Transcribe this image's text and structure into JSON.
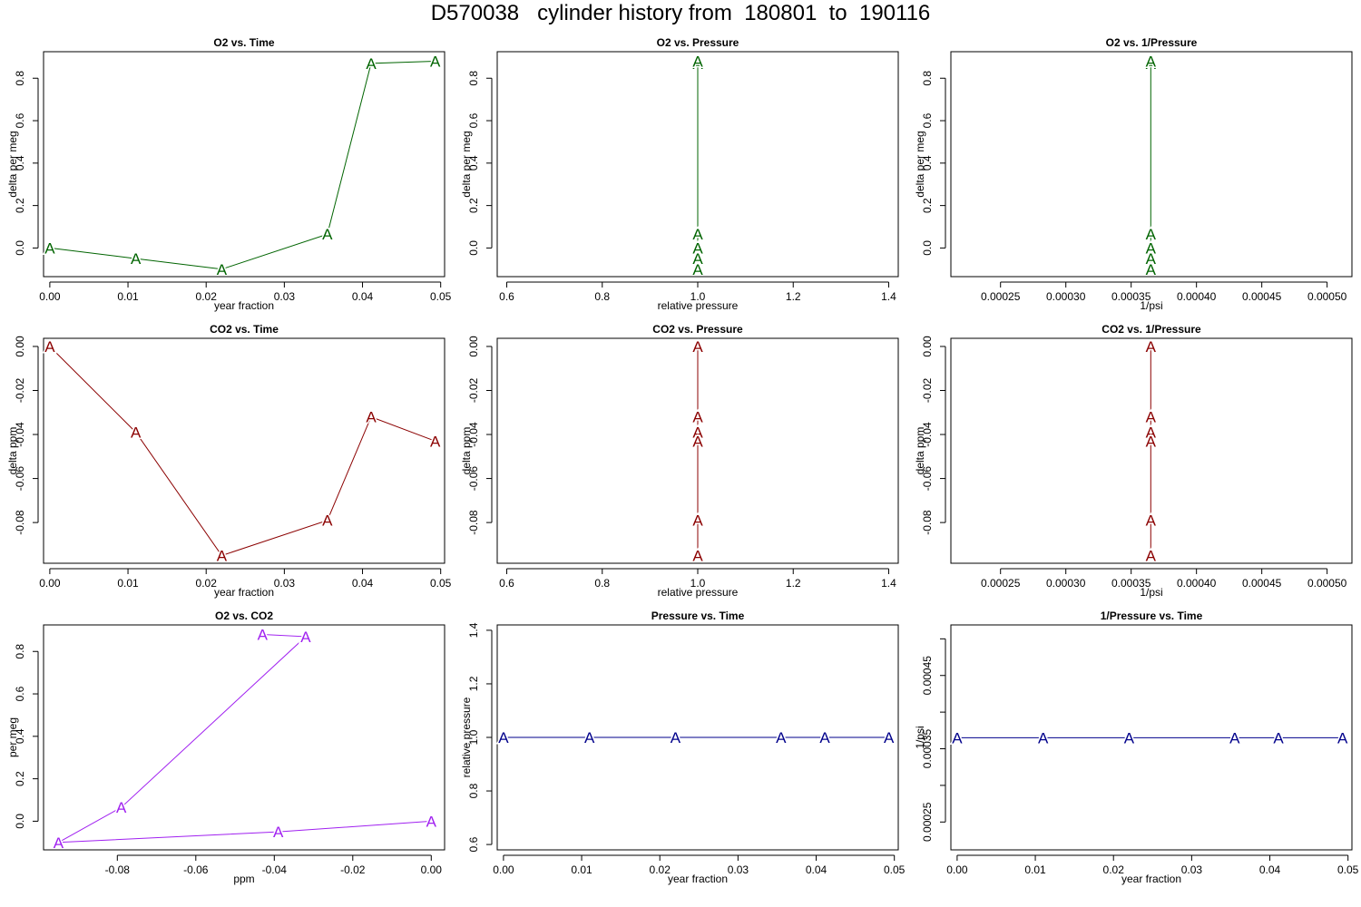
{
  "page": {
    "title": "D570038   cylinder history from  180801  to  190116"
  },
  "chart_data": [
    {
      "type": "line",
      "title": "O2 vs. Time",
      "xlabel": "year fraction",
      "ylabel": "delta per meg",
      "color": "#006400",
      "marker": "A",
      "xlim": [
        -0.0008,
        0.0505
      ],
      "ylim": [
        -0.135,
        0.925
      ],
      "xticks": [
        0.0,
        0.01,
        0.02,
        0.03,
        0.04,
        0.05
      ],
      "xtick_labels": [
        "0.00",
        "0.01",
        "0.02",
        "0.03",
        "0.04",
        "0.05"
      ],
      "yticks": [
        0.0,
        0.2,
        0.4,
        0.6,
        0.8
      ],
      "ytick_labels": [
        "0.0",
        "0.2",
        "0.4",
        "0.6",
        "0.8"
      ],
      "x": [
        0.0,
        0.011,
        0.022,
        0.0355,
        0.0411,
        0.0493
      ],
      "y": [
        0.0,
        -0.05,
        -0.1,
        0.065,
        0.87,
        0.88
      ]
    },
    {
      "type": "line",
      "title": "O2 vs. Pressure",
      "xlabel": "relative pressure",
      "ylabel": "delta per meg",
      "color": "#006400",
      "marker": "A",
      "xlim": [
        0.58,
        1.42
      ],
      "ylim": [
        -0.135,
        0.925
      ],
      "xticks": [
        0.6,
        0.8,
        1.0,
        1.2,
        1.4
      ],
      "xtick_labels": [
        "0.6",
        "0.8",
        "1.0",
        "1.2",
        "1.4"
      ],
      "yticks": [
        0.0,
        0.2,
        0.4,
        0.6,
        0.8
      ],
      "ytick_labels": [
        "0.0",
        "0.2",
        "0.4",
        "0.6",
        "0.8"
      ],
      "x": [
        1.0,
        1.0,
        1.0,
        1.0,
        1.0,
        1.0
      ],
      "y": [
        0.0,
        -0.05,
        -0.1,
        0.065,
        0.87,
        0.88
      ]
    },
    {
      "type": "line",
      "title": "O2 vs. 1/Pressure",
      "xlabel": "1/psi",
      "ylabel": "delta per meg",
      "color": "#006400",
      "marker": "A",
      "xlim": [
        0.000212,
        0.000519
      ],
      "ylim": [
        -0.135,
        0.925
      ],
      "xticks": [
        0.00025,
        0.0003,
        0.00035,
        0.0004,
        0.00045,
        0.0005
      ],
      "xtick_labels": [
        "0.00025",
        "0.00030",
        "0.00035",
        "0.00040",
        "0.00045",
        "0.00050"
      ],
      "yticks": [
        0.0,
        0.2,
        0.4,
        0.6,
        0.8
      ],
      "ytick_labels": [
        "0.0",
        "0.2",
        "0.4",
        "0.6",
        "0.8"
      ],
      "x": [
        0.000365,
        0.000365,
        0.000365,
        0.000365,
        0.000365,
        0.000365
      ],
      "y": [
        0.0,
        -0.05,
        -0.1,
        0.065,
        0.87,
        0.88
      ]
    },
    {
      "type": "line",
      "title": "CO2 vs. Time",
      "xlabel": "year fraction",
      "ylabel": "delta ppm",
      "color": "#8B0000",
      "marker": "A",
      "xlim": [
        -0.0008,
        0.0505
      ],
      "ylim": [
        -0.0985,
        0.0037
      ],
      "xticks": [
        0.0,
        0.01,
        0.02,
        0.03,
        0.04,
        0.05
      ],
      "xtick_labels": [
        "0.00",
        "0.01",
        "0.02",
        "0.03",
        "0.04",
        "0.05"
      ],
      "yticks": [
        -0.08,
        -0.06,
        -0.04,
        -0.02,
        0.0
      ],
      "ytick_labels": [
        "-0.08",
        "-0.06",
        "-0.04",
        "-0.02",
        "0.00"
      ],
      "x": [
        0.0,
        0.011,
        0.022,
        0.0355,
        0.0411,
        0.0493
      ],
      "y": [
        0.0,
        -0.039,
        -0.095,
        -0.079,
        -0.032,
        -0.043
      ]
    },
    {
      "type": "line",
      "title": "CO2 vs. Pressure",
      "xlabel": "relative pressure",
      "ylabel": "delta ppm",
      "color": "#8B0000",
      "marker": "A",
      "xlim": [
        0.58,
        1.42
      ],
      "ylim": [
        -0.0985,
        0.0037
      ],
      "xticks": [
        0.6,
        0.8,
        1.0,
        1.2,
        1.4
      ],
      "xtick_labels": [
        "0.6",
        "0.8",
        "1.0",
        "1.2",
        "1.4"
      ],
      "yticks": [
        -0.08,
        -0.06,
        -0.04,
        -0.02,
        0.0
      ],
      "ytick_labels": [
        "-0.08",
        "-0.06",
        "-0.04",
        "-0.02",
        "0.00"
      ],
      "x": [
        1.0,
        1.0,
        1.0,
        1.0,
        1.0,
        1.0
      ],
      "y": [
        0.0,
        -0.039,
        -0.095,
        -0.079,
        -0.032,
        -0.043
      ]
    },
    {
      "type": "line",
      "title": "CO2 vs. 1/Pressure",
      "xlabel": "1/psi",
      "ylabel": "delta ppm",
      "color": "#8B0000",
      "marker": "A",
      "xlim": [
        0.000212,
        0.000519
      ],
      "ylim": [
        -0.0985,
        0.0037
      ],
      "xticks": [
        0.00025,
        0.0003,
        0.00035,
        0.0004,
        0.00045,
        0.0005
      ],
      "xtick_labels": [
        "0.00025",
        "0.00030",
        "0.00035",
        "0.00040",
        "0.00045",
        "0.00050"
      ],
      "yticks": [
        -0.08,
        -0.06,
        -0.04,
        -0.02,
        0.0
      ],
      "ytick_labels": [
        "-0.08",
        "-0.06",
        "-0.04",
        "-0.02",
        "0.00"
      ],
      "x": [
        0.000365,
        0.000365,
        0.000365,
        0.000365,
        0.000365,
        0.000365
      ],
      "y": [
        0.0,
        -0.039,
        -0.095,
        -0.079,
        -0.032,
        -0.043
      ]
    },
    {
      "type": "line",
      "title": "O2 vs. CO2",
      "xlabel": "ppm",
      "ylabel": "per meg",
      "color": "#A020F0",
      "marker": "A",
      "xlim": [
        -0.0988,
        0.0034
      ],
      "ylim": [
        -0.135,
        0.925
      ],
      "xticks": [
        -0.08,
        -0.06,
        -0.04,
        -0.02,
        0.0
      ],
      "xtick_labels": [
        "-0.08",
        "-0.06",
        "-0.04",
        "-0.02",
        "0.00"
      ],
      "yticks": [
        0.0,
        0.2,
        0.4,
        0.6,
        0.8
      ],
      "ytick_labels": [
        "0.0",
        "0.2",
        "0.4",
        "0.6",
        "0.8"
      ],
      "x": [
        0.0,
        -0.039,
        -0.095,
        -0.079,
        -0.032,
        -0.043
      ],
      "y": [
        0.0,
        -0.05,
        -0.1,
        0.065,
        0.87,
        0.88
      ]
    },
    {
      "type": "line",
      "title": "Pressure vs. Time",
      "xlabel": "year fraction",
      "ylabel": "relative pressure",
      "color": "#00008B",
      "marker": "A",
      "xlim": [
        -0.0008,
        0.0505
      ],
      "ylim": [
        0.58,
        1.42
      ],
      "xticks": [
        0.0,
        0.01,
        0.02,
        0.03,
        0.04,
        0.05
      ],
      "xtick_labels": [
        "0.00",
        "0.01",
        "0.02",
        "0.03",
        "0.04",
        "0.05"
      ],
      "yticks": [
        0.6,
        0.8,
        1.0,
        1.2,
        1.4
      ],
      "ytick_labels": [
        "0.6",
        "0.8",
        "1.0",
        "1.2",
        "1.4"
      ],
      "x": [
        0.0,
        0.011,
        0.022,
        0.0355,
        0.0411,
        0.0493
      ],
      "y": [
        1.0,
        1.0,
        1.0,
        1.0,
        1.0,
        1.0
      ]
    },
    {
      "type": "line",
      "title": "1/Pressure vs. Time",
      "xlabel": "year fraction",
      "ylabel": "1/psi",
      "color": "#00008B",
      "marker": "A",
      "xlim": [
        -0.0008,
        0.0505
      ],
      "ylim": [
        0.000212,
        0.000519
      ],
      "xticks": [
        0.0,
        0.01,
        0.02,
        0.03,
        0.04,
        0.05
      ],
      "xtick_labels": [
        "0.00",
        "0.01",
        "0.02",
        "0.03",
        "0.04",
        "0.05"
      ],
      "yticks": [
        0.00025,
        0.0003,
        0.00035,
        0.0004,
        0.00045,
        0.0005
      ],
      "ytick_labels": [
        "0.00025",
        "",
        "0.00035",
        "",
        "0.00045",
        ""
      ],
      "x": [
        0.0,
        0.011,
        0.022,
        0.0355,
        0.0411,
        0.0493
      ],
      "y": [
        0.000365,
        0.000365,
        0.000365,
        0.000365,
        0.000365,
        0.000365
      ]
    }
  ]
}
